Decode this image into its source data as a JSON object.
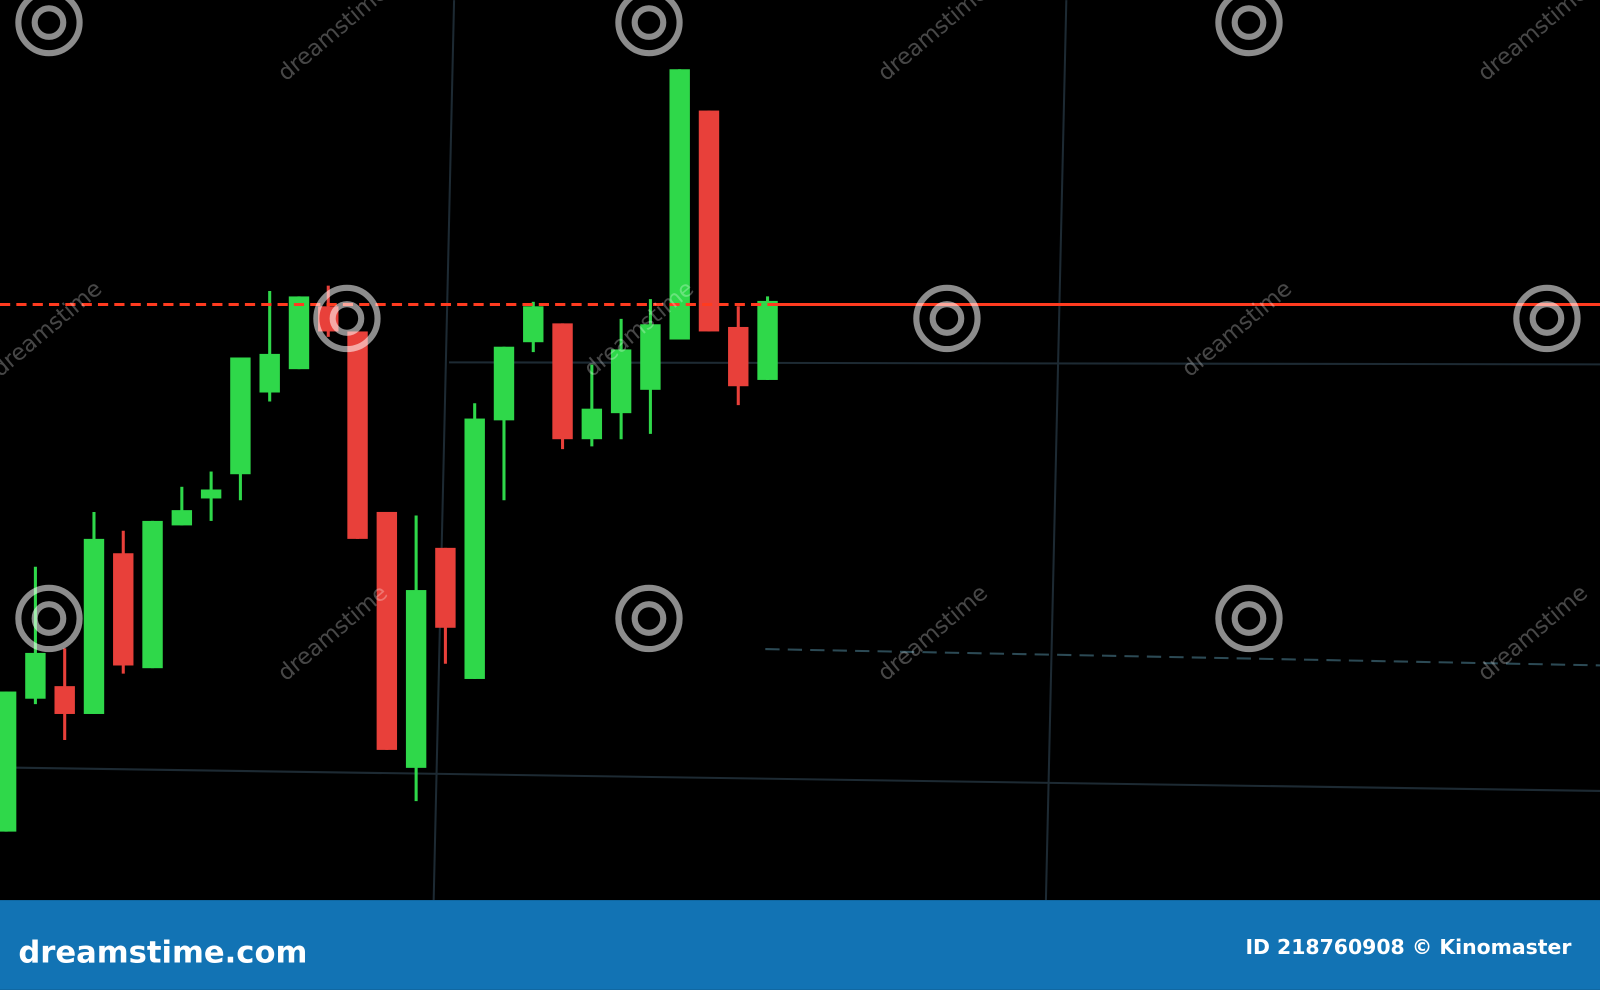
{
  "chart_data": {
    "type": "candlestick",
    "open": [
      7.4,
      22.2,
      23.6,
      20.5,
      38.4,
      25.6,
      41.5,
      44.5,
      47.2,
      56.3,
      58.9,
      65.9,
      63.1,
      43.0,
      14.5,
      39.0,
      24.4,
      53.2,
      61.9,
      64.0,
      51.1,
      54.0,
      56.6,
      62.2,
      87.7,
      63.6,
      57.7
    ],
    "high": [
      23.0,
      36.9,
      27.8,
      43.0,
      40.9,
      42.0,
      45.8,
      47.5,
      60.2,
      67.6,
      67.0,
      68.2,
      63.1,
      43.0,
      42.6,
      39.0,
      55.1,
      61.4,
      66.4,
      64.0,
      59.4,
      64.5,
      66.7,
      92.3,
      87.7,
      65.9,
      67.0
    ],
    "low": [
      7.4,
      21.6,
      17.6,
      20.5,
      25.0,
      25.6,
      41.5,
      42.0,
      44.3,
      55.3,
      58.9,
      62.5,
      40.0,
      16.5,
      10.8,
      26.1,
      24.4,
      44.3,
      60.8,
      50.0,
      50.3,
      51.1,
      51.7,
      62.2,
      63.1,
      54.9,
      57.7
    ],
    "close": [
      23.0,
      27.3,
      20.5,
      40.0,
      25.9,
      42.0,
      43.2,
      45.5,
      60.2,
      60.6,
      67.0,
      63.1,
      40.0,
      16.5,
      34.3,
      30.1,
      53.4,
      61.4,
      65.9,
      51.1,
      54.5,
      61.1,
      63.9,
      92.3,
      63.1,
      57.0,
      66.5
    ],
    "up_color": "#2fd84a",
    "down_color": "#e8403a",
    "ylim": [
      0,
      100
    ],
    "reference_line": 66.1,
    "reference_color": "#ff3b1f"
  },
  "watermark": "dreamstime",
  "footer": {
    "site": "dreamstime.com",
    "credit": "ID 218760908 © Kinomaster"
  }
}
